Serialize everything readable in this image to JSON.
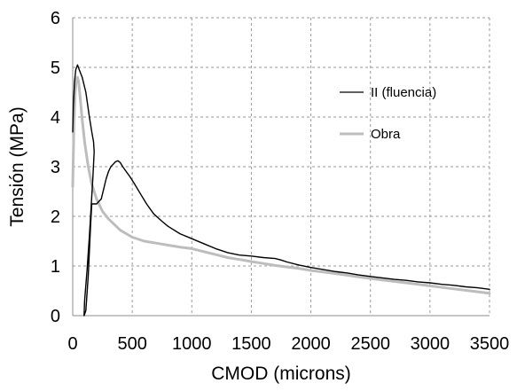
{
  "chart_data": {
    "type": "line",
    "title": "",
    "xlabel": "CMOD (microns)",
    "ylabel": "Tensión (MPa)",
    "xlim": [
      0,
      3500
    ],
    "ylim": [
      0,
      6
    ],
    "x_ticks": [
      0,
      500,
      1000,
      1500,
      2000,
      2500,
      3000,
      3500
    ],
    "y_ticks": [
      0,
      1,
      2,
      3,
      4,
      5,
      6
    ],
    "grid": true,
    "grid_style": "dashed",
    "legend_position": "right, inside plot",
    "series": [
      {
        "name": "II (fluencia)",
        "color": "#000000",
        "x": [
          0,
          5,
          15,
          25,
          40,
          55,
          80,
          110,
          140,
          160,
          175,
          180,
          170,
          155,
          140,
          120,
          100,
          95,
          110,
          130,
          150,
          160,
          160,
          200,
          240,
          260,
          280,
          300,
          320,
          340,
          360,
          380,
          390,
          400,
          420,
          450,
          480,
          520,
          570,
          620,
          680,
          750,
          800,
          900,
          1000,
          1100,
          1200,
          1300,
          1400,
          1500,
          1600,
          1700,
          1750,
          1800,
          1900,
          2000,
          2100,
          2200,
          2300,
          2400,
          2500,
          2600,
          2700,
          2800,
          2900,
          3000,
          3100,
          3200,
          3300,
          3400,
          3500
        ],
        "y": [
          3.7,
          4.2,
          4.7,
          4.95,
          5.05,
          4.95,
          4.8,
          4.5,
          4.0,
          3.7,
          3.5,
          3.3,
          2.8,
          2.2,
          1.6,
          0.9,
          0.3,
          0.0,
          0.1,
          0.8,
          1.8,
          2.25,
          2.25,
          2.25,
          2.35,
          2.55,
          2.75,
          2.9,
          3.0,
          3.05,
          3.1,
          3.12,
          3.1,
          3.08,
          3.0,
          2.9,
          2.8,
          2.65,
          2.45,
          2.25,
          2.05,
          1.9,
          1.8,
          1.65,
          1.55,
          1.45,
          1.35,
          1.27,
          1.22,
          1.2,
          1.17,
          1.15,
          1.12,
          1.08,
          1.02,
          0.97,
          0.93,
          0.89,
          0.86,
          0.82,
          0.79,
          0.76,
          0.73,
          0.71,
          0.68,
          0.66,
          0.63,
          0.61,
          0.58,
          0.56,
          0.53
        ]
      },
      {
        "name": "Obra",
        "color": "#bdbdbd",
        "x": [
          0,
          10,
          20,
          30,
          40,
          50,
          60,
          80,
          100,
          130,
          160,
          200,
          250,
          300,
          400,
          500,
          600,
          700,
          800,
          900,
          1000,
          1100,
          1200,
          1300,
          1400,
          1500,
          1600,
          1700,
          1800,
          1900,
          2000,
          2200,
          2400,
          2600,
          2800,
          3000,
          3200,
          3400,
          3500
        ],
        "y": [
          2.6,
          3.8,
          4.5,
          4.75,
          4.8,
          4.7,
          4.45,
          3.95,
          3.5,
          3.0,
          2.65,
          2.35,
          2.1,
          1.95,
          1.72,
          1.58,
          1.5,
          1.46,
          1.42,
          1.38,
          1.35,
          1.29,
          1.23,
          1.17,
          1.13,
          1.09,
          1.05,
          1.01,
          0.98,
          0.95,
          0.91,
          0.85,
          0.78,
          0.72,
          0.66,
          0.6,
          0.54,
          0.48,
          0.45
        ]
      }
    ]
  },
  "labels": {
    "xlabel": "CMOD (microns)",
    "ylabel": "Tensión (MPa)",
    "legend_1": "II (fluencia)",
    "legend_2": "Obra"
  }
}
